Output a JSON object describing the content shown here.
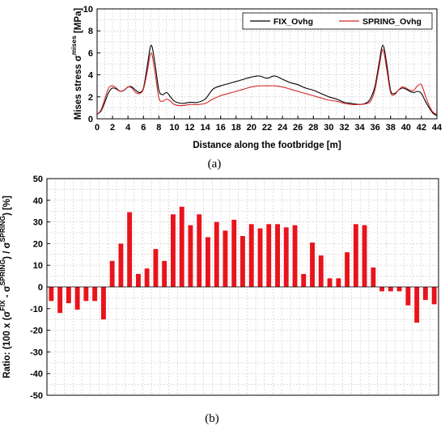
{
  "chart_data": [
    {
      "type": "line",
      "panel_label": "(a)",
      "xlabel": "Distance along the footbridge [m]",
      "ylabel_main": "Mises stress σ",
      "ylabel_sup": "mises",
      "ylabel_unit": "[MPa]",
      "xlim": [
        0,
        44
      ],
      "ylim": [
        0,
        10
      ],
      "xticks": [
        "0",
        "2",
        "4",
        "6",
        "8",
        "10",
        "12",
        "14",
        "16",
        "18",
        "20",
        "22",
        "24",
        "26",
        "28",
        "30",
        "32",
        "34",
        "36",
        "38",
        "40",
        "42",
        "44"
      ],
      "yticks": [
        "0",
        "2",
        "4",
        "6",
        "8",
        "10"
      ],
      "grid": true,
      "legend_position": "top-right",
      "series": [
        {
          "name": "FIX_Ovhg",
          "color": "#000000",
          "x": [
            0,
            0.5,
            1,
            1.5,
            2,
            2.5,
            3,
            3.5,
            4,
            4.5,
            5,
            5.5,
            6,
            6.5,
            7,
            7.5,
            8,
            8.5,
            9,
            9.5,
            10,
            11,
            12,
            13,
            14,
            15,
            16,
            17,
            18,
            19,
            20,
            21,
            22,
            23,
            24,
            25,
            26,
            27,
            28,
            29,
            30,
            31,
            32,
            33,
            34,
            35,
            35.5,
            36,
            36.5,
            37,
            37.5,
            38,
            38.5,
            39,
            39.5,
            40,
            40.5,
            41,
            41.5,
            42,
            42.5,
            43,
            43.5,
            44
          ],
          "y": [
            0.4,
            0.7,
            1.5,
            2.4,
            2.8,
            2.7,
            2.5,
            2.6,
            2.9,
            2.9,
            2.6,
            2.4,
            2.8,
            4.8,
            6.7,
            5.0,
            2.6,
            2.2,
            2.4,
            2.0,
            1.6,
            1.4,
            1.5,
            1.5,
            1.8,
            2.7,
            3.0,
            3.2,
            3.4,
            3.6,
            3.8,
            3.9,
            3.7,
            3.9,
            3.6,
            3.3,
            3.1,
            2.8,
            2.6,
            2.3,
            2.0,
            1.8,
            1.5,
            1.4,
            1.3,
            1.5,
            2.0,
            3.0,
            5.0,
            6.7,
            5.0,
            2.6,
            2.3,
            2.6,
            2.8,
            2.7,
            2.5,
            2.4,
            2.5,
            2.3,
            1.6,
            1.0,
            0.5,
            0.3
          ]
        },
        {
          "name": "SPRING_Ovhg",
          "color": "#d62728",
          "x": [
            0,
            0.5,
            1,
            1.5,
            2,
            2.5,
            3,
            3.5,
            4,
            4.5,
            5,
            5.5,
            6,
            6.5,
            7,
            7.5,
            8,
            8.5,
            9,
            9.5,
            10,
            11,
            12,
            13,
            14,
            15,
            16,
            17,
            18,
            19,
            20,
            21,
            22,
            23,
            24,
            25,
            26,
            27,
            28,
            29,
            30,
            31,
            32,
            33,
            34,
            35,
            35.5,
            36,
            36.5,
            37,
            37.5,
            38,
            38.5,
            39,
            39.5,
            40,
            40.5,
            41,
            41.5,
            42,
            42.5,
            43,
            43.5,
            44
          ],
          "y": [
            0.4,
            0.8,
            1.8,
            2.8,
            3.0,
            2.8,
            2.5,
            2.6,
            2.9,
            2.8,
            2.4,
            2.3,
            2.7,
            4.3,
            6.0,
            4.2,
            1.9,
            1.6,
            1.8,
            1.6,
            1.3,
            1.2,
            1.3,
            1.3,
            1.4,
            1.8,
            2.1,
            2.3,
            2.5,
            2.7,
            2.9,
            3.0,
            3.0,
            3.0,
            2.9,
            2.7,
            2.5,
            2.3,
            2.1,
            1.9,
            1.7,
            1.6,
            1.4,
            1.3,
            1.3,
            1.4,
            1.7,
            2.7,
            4.6,
            6.3,
            4.5,
            2.4,
            2.2,
            2.6,
            2.9,
            2.8,
            2.6,
            2.6,
            3.0,
            3.1,
            2.1,
            1.2,
            0.6,
            0.4
          ]
        }
      ]
    },
    {
      "type": "bar",
      "panel_label": "(b)",
      "ylabel_text": "Ratio: (100 x (σ",
      "ylabel_sup1": "FIX",
      "ylabel_mid": " - σ",
      "ylabel_sup2": "SPRING",
      "ylabel_mid2": ") / σ",
      "ylabel_sup3": "SPRING",
      "ylabel_tail": ") [%]",
      "ylim": [
        -50,
        50
      ],
      "yticks": [
        "50",
        "40",
        "30",
        "20",
        "10",
        "0",
        "-10",
        "-20",
        "-30",
        "-40",
        "-50"
      ],
      "grid": true,
      "color": "#e8141c",
      "values": [
        -6.5,
        -12,
        -7.5,
        -10.5,
        -6.5,
        -6.5,
        -15,
        12,
        20,
        34.5,
        6,
        8.5,
        17.5,
        12,
        33.5,
        37,
        28.5,
        33.5,
        23,
        30,
        26,
        31,
        23.5,
        29,
        27,
        29,
        29,
        27.5,
        28.5,
        6,
        20.5,
        14.5,
        4,
        4,
        16,
        29,
        28.5,
        9,
        -2,
        -2,
        -2,
        -8.5,
        -16.5,
        -6,
        -8
      ]
    }
  ]
}
